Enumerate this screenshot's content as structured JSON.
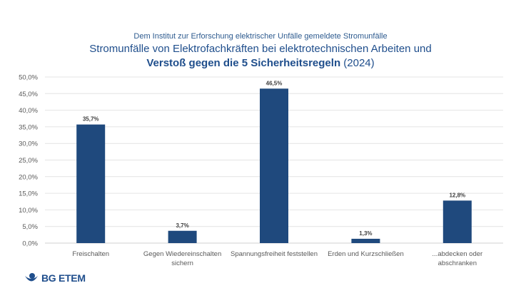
{
  "chart_data": {
    "type": "bar",
    "subtitle": "Dem Institut zur Erforschung elektrischer Unfälle gemeldete Stromunfälle",
    "title_line1": "Stromunfälle von Elektrofachkräften bei elektrotechnischen Arbeiten und",
    "title_line2_bold": "Verstoß gegen die 5 Sicherheitsregeln",
    "title_line2_rest": " (2024)",
    "categories": [
      [
        "Freischalten"
      ],
      [
        "Gegen Wiedereinschalten",
        "sichern"
      ],
      [
        "Spannungsfreiheit feststellen"
      ],
      [
        "Erden und Kurzschließen"
      ],
      [
        "...abdecken oder",
        "abschranken"
      ]
    ],
    "values": [
      35.7,
      3.7,
      46.5,
      1.3,
      12.8
    ],
    "data_labels": [
      "35,7%",
      "3,7%",
      "46,5%",
      "1,3%",
      "12,8%"
    ],
    "ylim": [
      0,
      50
    ],
    "yticks": [
      "0,0%",
      "5,0%",
      "10,0%",
      "15,0%",
      "20,0%",
      "25,0%",
      "30,0%",
      "35,0%",
      "40,0%",
      "45,0%",
      "50,0%"
    ],
    "grid": true,
    "bar_color": "#1f497d",
    "xlabel": "",
    "ylabel": ""
  },
  "logo": {
    "text": "BG ETEM",
    "color": "#1f4e8c"
  }
}
